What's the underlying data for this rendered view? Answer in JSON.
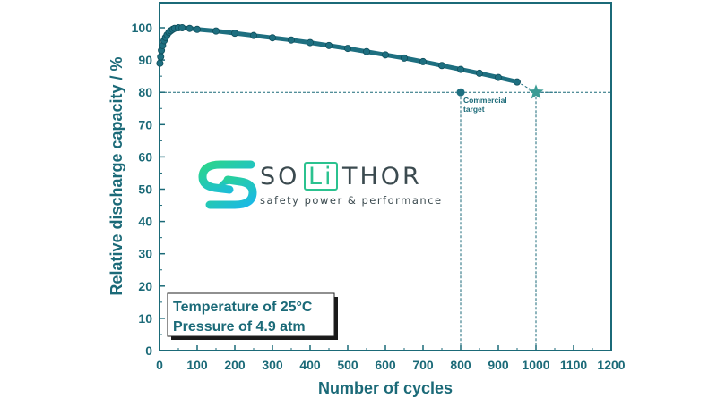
{
  "chart_data": {
    "type": "scatter",
    "xlabel": "Number of cycles",
    "ylabel": "Relative discharge capacity / %",
    "xlim": [
      0,
      1200
    ],
    "ylim": [
      0,
      105
    ],
    "xticks": [
      0,
      100,
      200,
      300,
      400,
      500,
      600,
      700,
      800,
      900,
      1000,
      1100,
      1200
    ],
    "yticks": [
      0,
      10,
      20,
      30,
      40,
      50,
      60,
      70,
      80,
      90,
      100
    ],
    "grid": false,
    "series": [
      {
        "points": [
          [
            1,
            89
          ],
          [
            3,
            91
          ],
          [
            5,
            93
          ],
          [
            8,
            94.5
          ],
          [
            12,
            96
          ],
          [
            16,
            97
          ],
          [
            20,
            97.8
          ],
          [
            25,
            98.6
          ],
          [
            30,
            99.1
          ],
          [
            35,
            99.5
          ],
          [
            40,
            99.8
          ],
          [
            50,
            100
          ],
          [
            60,
            100
          ],
          [
            80,
            99.8
          ],
          [
            100,
            99.5
          ],
          [
            150,
            99
          ],
          [
            200,
            98.3
          ],
          [
            250,
            97.6
          ],
          [
            300,
            96.9
          ],
          [
            350,
            96.2
          ],
          [
            400,
            95.4
          ],
          [
            450,
            94.5
          ],
          [
            500,
            93.6
          ],
          [
            550,
            92.6
          ],
          [
            600,
            91.6
          ],
          [
            650,
            90.6
          ],
          [
            700,
            89.5
          ],
          [
            750,
            88.3
          ],
          [
            800,
            87.1
          ],
          [
            850,
            85.9
          ],
          [
            900,
            84.6
          ],
          [
            950,
            83.2
          ]
        ]
      }
    ],
    "projection": {
      "style": "dashed",
      "points": [
        [
          950,
          83.2
        ],
        [
          1000,
          80
        ],
        [
          1060,
          80
        ]
      ]
    },
    "reference_lines": {
      "horizontal_y": 80,
      "vertical_x": [
        800,
        1000
      ],
      "style": "dashed"
    },
    "markers": [
      {
        "shape": "circle",
        "x": 800,
        "y": 80,
        "label": "Commercial target"
      },
      {
        "shape": "star",
        "x": 1000,
        "y": 80
      }
    ],
    "annotation_box": {
      "lines": [
        "Temperature of 25°C",
        "Pressure of 4.9 atm"
      ]
    },
    "colors": {
      "axis": "#1b6a78",
      "series": "#1e6f80",
      "star": "#3a9c95",
      "logo_gradient": [
        "#2bd58c",
        "#1ab8e8"
      ],
      "logo_text": "#3b4a4f"
    }
  },
  "logo": {
    "icon": "solithor-s-icon",
    "word_left": "SO",
    "word_box": "Li",
    "word_right": "THOR",
    "tagline": "safety power & performance"
  }
}
